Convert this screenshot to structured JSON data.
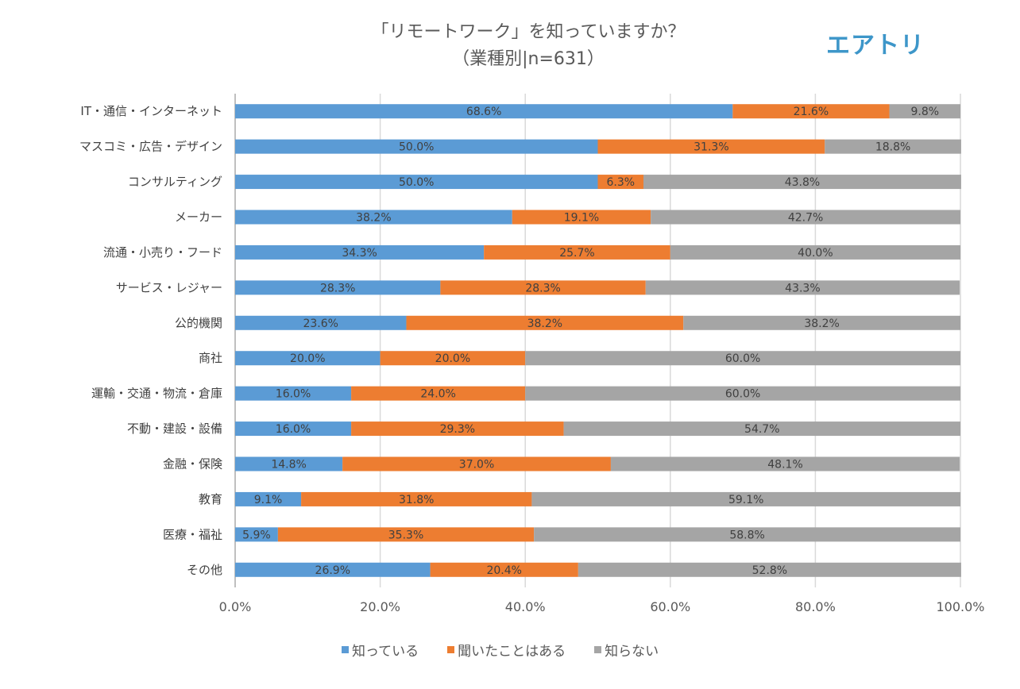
{
  "logo": "エアトリ",
  "chart_data": {
    "type": "bar",
    "orientation": "horizontal",
    "stacked": "percent",
    "title": "「リモートワーク」を知っていますか？",
    "subtitle": "（業種別|n=631）",
    "xlabel": "",
    "ylabel": "",
    "xlim": [
      0,
      100
    ],
    "x_ticks": [
      "0.0%",
      "20.0%",
      "40.0%",
      "60.0%",
      "80.0%",
      "100.0%"
    ],
    "grid": true,
    "legend_position": "bottom",
    "categories": [
      "IT・通信・インターネット",
      "マスコミ・広告・デザイン",
      "コンサルティング",
      "メーカー",
      "流通・小売り・フード",
      "サービス・レジャー",
      "公的機関",
      "商社",
      "運輸・交通・物流・倉庫",
      "不動・建設・設備",
      "金融・保険",
      "教育",
      "医療・福祉",
      "その他"
    ],
    "series": [
      {
        "name": "知っている",
        "color": "#5b9bd5",
        "values": [
          68.6,
          50.0,
          50.0,
          38.2,
          34.3,
          28.3,
          23.6,
          20.0,
          16.0,
          16.0,
          14.8,
          9.1,
          5.9,
          26.9
        ]
      },
      {
        "name": "聞いたことはある",
        "color": "#ed7d31",
        "values": [
          21.6,
          31.3,
          6.3,
          19.1,
          25.7,
          28.3,
          38.2,
          20.0,
          24.0,
          29.3,
          37.0,
          31.8,
          35.3,
          20.4
        ]
      },
      {
        "name": "知らない",
        "color": "#a5a5a5",
        "values": [
          9.8,
          18.8,
          43.8,
          42.7,
          40.0,
          43.3,
          38.2,
          60.0,
          60.0,
          54.7,
          48.1,
          59.1,
          58.8,
          52.8
        ]
      }
    ]
  }
}
